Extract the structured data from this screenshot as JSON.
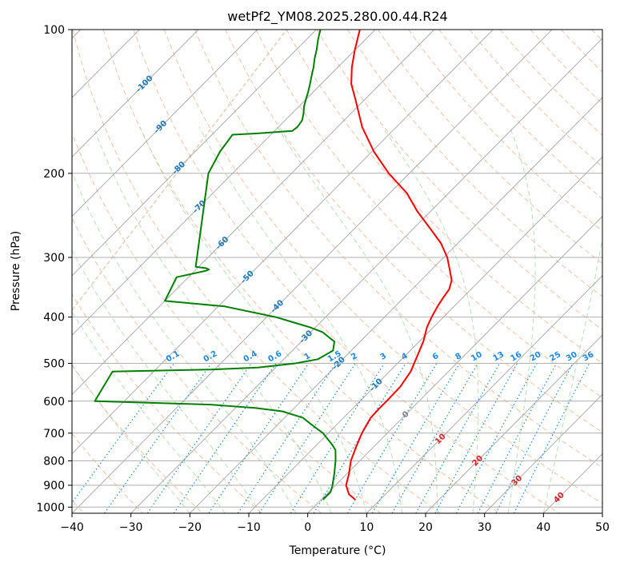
{
  "chart_data": {
    "type": "line",
    "chart_kind": "skew-T log-P diagram",
    "title": "wetPf2_YM08.2025.280.00.44.R24",
    "xlabel": "Temperature (°C)",
    "ylabel": "Pressure (hPa)",
    "xlim": [
      -40,
      50
    ],
    "ylim": [
      1030,
      100
    ],
    "y_scale": "log",
    "x_ticks": [
      -40,
      -30,
      -20,
      -10,
      0,
      10,
      20,
      30,
      40,
      50
    ],
    "y_ticks": [
      100,
      200,
      300,
      400,
      500,
      600,
      700,
      800,
      900,
      1000
    ],
    "grid": "horizontal isobars",
    "colors": {
      "temperature": "#ff0000",
      "dewpoint": "#008000",
      "isotherm": "#999999",
      "dry_adiabat": "#f4a582",
      "moist_adiabat": "#a6d9a6",
      "mixing_ratio": "#1e88e5",
      "isotherm_label_cold": "#1f77b4",
      "isotherm_label_warm": "#d62728",
      "isotherm_label_zero": "#808080",
      "ice_curve": "#d9c3a5"
    },
    "series": [
      {
        "role": "temperature",
        "points": [
          {
            "p": 965,
            "t": 5.8
          },
          {
            "p": 940,
            "t": 3.8
          },
          {
            "p": 900,
            "t": 1.8
          },
          {
            "p": 850,
            "t": 0.3
          },
          {
            "p": 800,
            "t": -1.5
          },
          {
            "p": 750,
            "t": -2.9
          },
          {
            "p": 700,
            "t": -4.3
          },
          {
            "p": 650,
            "t": -5.4
          },
          {
            "p": 620,
            "t": -5.5
          },
          {
            "p": 600,
            "t": -5.5
          },
          {
            "p": 560,
            "t": -5.6
          },
          {
            "p": 520,
            "t": -6.4
          },
          {
            "p": 480,
            "t": -8.0
          },
          {
            "p": 450,
            "t": -9.3
          },
          {
            "p": 420,
            "t": -11.1
          },
          {
            "p": 400,
            "t": -12.0
          },
          {
            "p": 380,
            "t": -12.8
          },
          {
            "p": 365,
            "t": -13.3
          },
          {
            "p": 350,
            "t": -13.7
          },
          {
            "p": 335,
            "t": -14.8
          },
          {
            "p": 320,
            "t": -16.7
          },
          {
            "p": 300,
            "t": -19.4
          },
          {
            "p": 280,
            "t": -22.9
          },
          {
            "p": 260,
            "t": -27.4
          },
          {
            "p": 240,
            "t": -32.3
          },
          {
            "p": 220,
            "t": -37.1
          },
          {
            "p": 200,
            "t": -43.5
          },
          {
            "p": 180,
            "t": -49.7
          },
          {
            "p": 160,
            "t": -55.8
          },
          {
            "p": 140,
            "t": -61.6
          },
          {
            "p": 130,
            "t": -64.9
          },
          {
            "p": 120,
            "t": -67.6
          },
          {
            "p": 110,
            "t": -70.1
          },
          {
            "p": 100,
            "t": -72.6
          }
        ]
      },
      {
        "role": "dewpoint",
        "points": [
          {
            "p": 965,
            "t": 0.3
          },
          {
            "p": 930,
            "t": 0.3
          },
          {
            "p": 900,
            "t": -0.5
          },
          {
            "p": 850,
            "t": -2.2
          },
          {
            "p": 800,
            "t": -4.1
          },
          {
            "p": 760,
            "t": -5.9
          },
          {
            "p": 740,
            "t": -7.4
          },
          {
            "p": 700,
            "t": -10.9
          },
          {
            "p": 670,
            "t": -14.5
          },
          {
            "p": 650,
            "t": -16.9
          },
          {
            "p": 630,
            "t": -21.5
          },
          {
            "p": 620,
            "t": -26.7
          },
          {
            "p": 610,
            "t": -34.8
          },
          {
            "p": 605,
            "t": -44.6
          },
          {
            "p": 600,
            "t": -55.0
          },
          {
            "p": 520,
            "t": -57.0
          },
          {
            "p": 515,
            "t": -40.6
          },
          {
            "p": 510,
            "t": -33.0
          },
          {
            "p": 500,
            "t": -27.3
          },
          {
            "p": 490,
            "t": -24.2
          },
          {
            "p": 470,
            "t": -23.1
          },
          {
            "p": 450,
            "t": -24.4
          },
          {
            "p": 440,
            "t": -26.2
          },
          {
            "p": 430,
            "t": -28.0
          },
          {
            "p": 420,
            "t": -31.0
          },
          {
            "p": 410,
            "t": -34.7
          },
          {
            "p": 400,
            "t": -38.5
          },
          {
            "p": 380,
            "t": -48.9
          },
          {
            "p": 370,
            "t": -60.0
          },
          {
            "p": 330,
            "t": -62.0
          },
          {
            "p": 320,
            "t": -58.1
          },
          {
            "p": 318,
            "t": -57.8
          },
          {
            "p": 316,
            "t": -58.5
          },
          {
            "p": 314,
            "t": -60.5
          },
          {
            "p": 200,
            "t": -74.1
          },
          {
            "p": 180,
            "t": -75.8
          },
          {
            "p": 166,
            "t": -76.5
          },
          {
            "p": 165,
            "t": -72.5
          },
          {
            "p": 163,
            "t": -67.0
          },
          {
            "p": 160,
            "t": -66.8
          },
          {
            "p": 155,
            "t": -67.1
          },
          {
            "p": 150,
            "t": -68.0
          },
          {
            "p": 145,
            "t": -69.1
          },
          {
            "p": 140,
            "t": -70.0
          },
          {
            "p": 135,
            "t": -70.9
          },
          {
            "p": 130,
            "t": -71.9
          },
          {
            "p": 125,
            "t": -73.0
          },
          {
            "p": 120,
            "t": -74.1
          },
          {
            "p": 115,
            "t": -75.4
          },
          {
            "p": 110,
            "t": -76.6
          },
          {
            "p": 105,
            "t": -78.0
          },
          {
            "p": 100,
            "t": -79.3
          }
        ]
      }
    ],
    "isotherm_labels": [
      {
        "text": "-100",
        "t": -100,
        "p": 130
      },
      {
        "text": "-90",
        "t": -90,
        "p": 160
      },
      {
        "text": "-80",
        "t": -80,
        "p": 195
      },
      {
        "text": "-70",
        "t": -70,
        "p": 235
      },
      {
        "text": "-60",
        "t": -60,
        "p": 280
      },
      {
        "text": "-50",
        "t": -50,
        "p": 330
      },
      {
        "text": "-40",
        "t": -40,
        "p": 380
      },
      {
        "text": "-30",
        "t": -30,
        "p": 440
      },
      {
        "text": "-20",
        "t": -20,
        "p": 500
      },
      {
        "text": "-10",
        "t": -10,
        "p": 555
      },
      {
        "text": "0",
        "t": 0,
        "p": 640
      },
      {
        "text": "10",
        "t": 10,
        "p": 720
      },
      {
        "text": "20",
        "t": 20,
        "p": 800
      },
      {
        "text": "30",
        "t": 30,
        "p": 880
      },
      {
        "text": "40",
        "t": 40,
        "p": 955
      }
    ],
    "mixing_ratio_labels": [
      "0.1",
      "0.2",
      "0.4",
      "0.6",
      "1",
      "1.5",
      "2",
      "3",
      "4",
      "6",
      "8",
      "10",
      "13",
      "16",
      "20",
      "25",
      "30",
      "36"
    ]
  }
}
